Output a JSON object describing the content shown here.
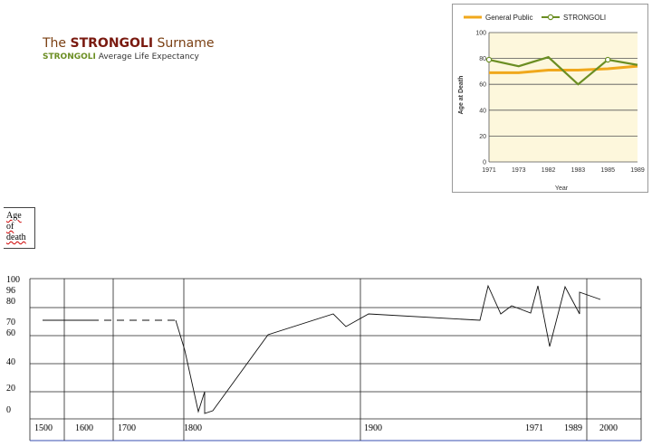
{
  "header": {
    "title_prefix": "The ",
    "surname": "STRONGOLI",
    "title_suffix": " Surname",
    "subtitle_name": "STRONGOLI",
    "subtitle_rest": " Average Life Expectancy"
  },
  "chart_data": [
    {
      "type": "line",
      "categories": [
        "1971",
        "1973",
        "1982",
        "1983",
        "1985",
        "1989"
      ],
      "series": [
        {
          "name": "General Public",
          "values": [
            69,
            69,
            71,
            71,
            72,
            74
          ],
          "color": "#f0a81c"
        },
        {
          "name": "STRONGOLI",
          "values": [
            79,
            74,
            81,
            60,
            79,
            75
          ],
          "color": "#6b8e23"
        }
      ],
      "xlabel": "Year",
      "ylabel": "Age at Death",
      "ylim": [
        0,
        100
      ],
      "yticks": [
        "0",
        "20",
        "40",
        "60",
        "80",
        "100"
      ],
      "grid": true,
      "legend": "top"
    },
    {
      "type": "line",
      "ylabel": "Age of death",
      "ylabel_words": [
        "Age",
        "of",
        "death"
      ],
      "yticks": [
        "0",
        "20",
        "40",
        "60",
        "70",
        "80",
        "96",
        "100"
      ],
      "xticks": [
        "1500",
        "1600",
        "1700",
        "1800",
        "1900",
        "1971",
        "1989",
        "2000"
      ],
      "grid": true
    }
  ]
}
